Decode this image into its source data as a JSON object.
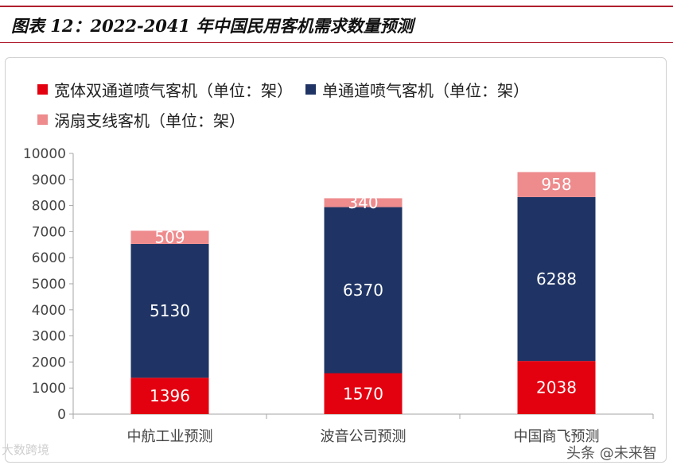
{
  "title": "图表 12：2022-2041 年中国民用客机需求数量预测",
  "watermark_left": "大数跨境",
  "watermark_right": "头条 @未来智",
  "colors": {
    "wide": "#e3000f",
    "narrow": "#1f3464",
    "turbo": "#ee8b8d",
    "rule": "#b01e2f"
  },
  "chart_data": {
    "type": "bar",
    "stacked": true,
    "categories": [
      "中航工业预测",
      "波音公司预测",
      "中国商飞预测"
    ],
    "series": [
      {
        "name": "宽体双通道喷气客机（单位：架）",
        "values": [
          1396,
          1570,
          2038
        ]
      },
      {
        "name": "单通道喷气客机（单位：架）",
        "values": [
          5130,
          6370,
          6288
        ]
      },
      {
        "name": "涡扇支线客机（单位：架）",
        "values": [
          509,
          340,
          958
        ]
      }
    ],
    "ylim": [
      0,
      10000
    ],
    "yticks": [
      "0",
      "1000",
      "2000",
      "3000",
      "4000",
      "5000",
      "6000",
      "7000",
      "8000",
      "9000",
      "10000"
    ],
    "legend_position": "top-left",
    "grid": false
  }
}
